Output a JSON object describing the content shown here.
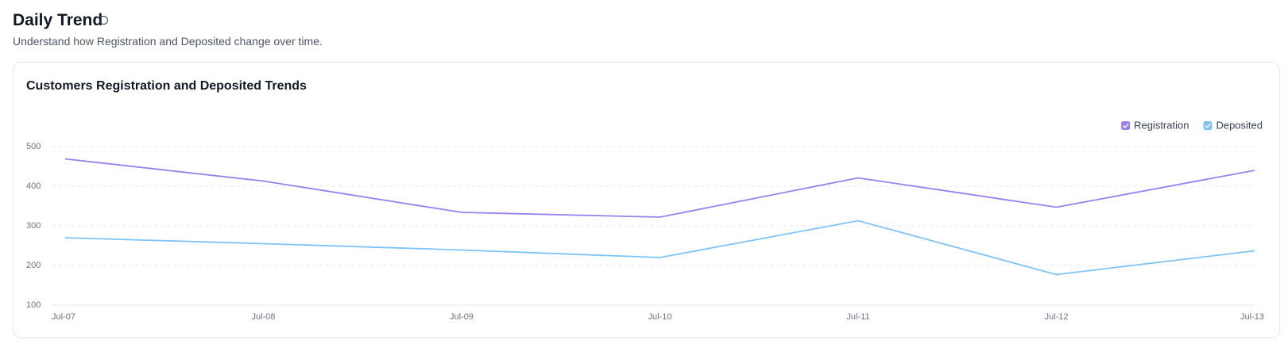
{
  "header": {
    "title": "Daily Trend",
    "subtitle": "Understand how Registration and Deposited change over time."
  },
  "chart_data": {
    "type": "line",
    "title": "Customers Registration and Deposited Trends",
    "categories": [
      "Jul-07",
      "Jul-08",
      "Jul-09",
      "Jul-10",
      "Jul-11",
      "Jul-12",
      "Jul-13"
    ],
    "series": [
      {
        "name": "Registration",
        "color": "#9b7ff0",
        "values": [
          469,
          413,
          334,
          322,
          421,
          347,
          440
        ]
      },
      {
        "name": "Deposited",
        "color": "#7cc4f8",
        "values": [
          270,
          255,
          239,
          220,
          313,
          177,
          237
        ]
      }
    ],
    "ylim": [
      100,
      500
    ],
    "yticks": [
      100,
      200,
      300,
      400,
      500
    ],
    "grid": true,
    "legend": "top-right"
  }
}
